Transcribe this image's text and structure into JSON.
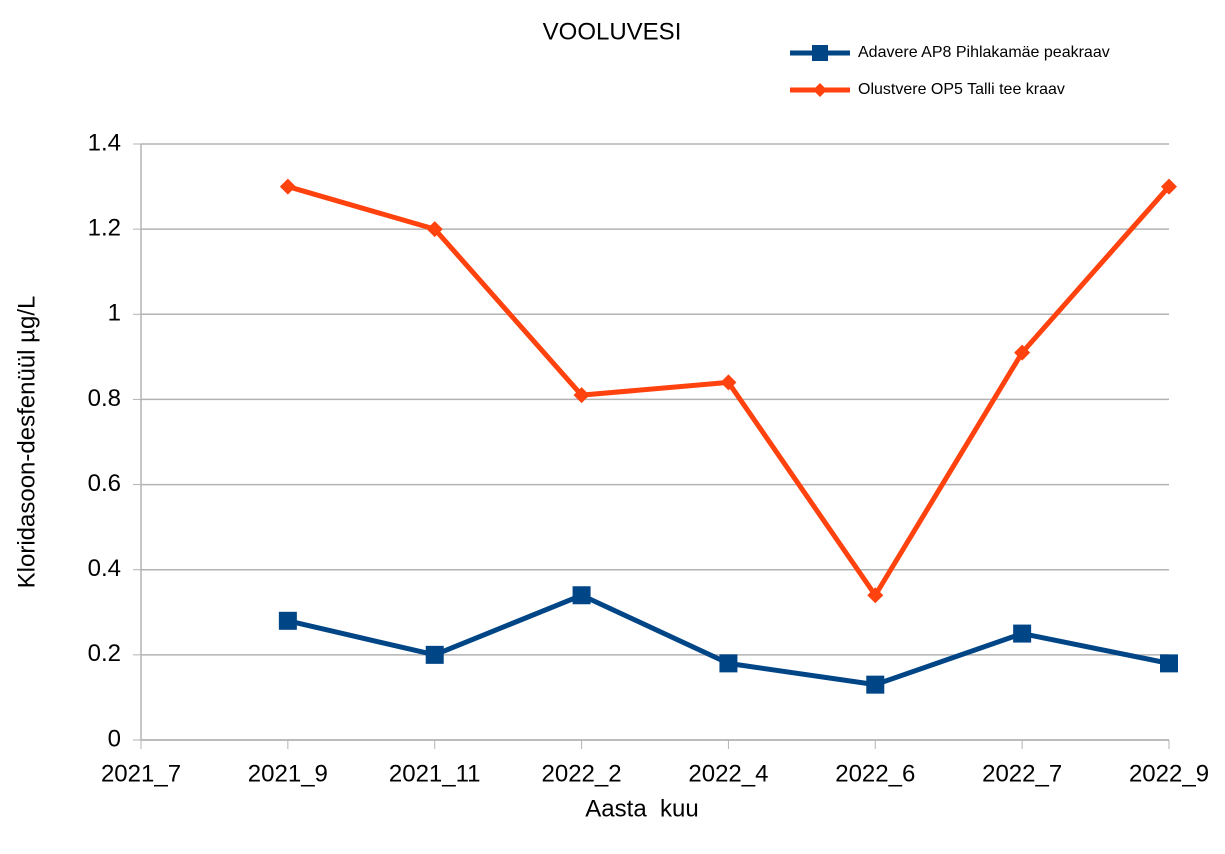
{
  "chart_data": {
    "type": "line",
    "title": "VOOLUVESI",
    "x_label": "Aasta  kuu",
    "y_label": "Kloridasoon-desfenüül µg/L",
    "categories": [
      "2021_7",
      "2021_9",
      "2021_11",
      "2022_2",
      "2022_4",
      "2022_6",
      "2022_7",
      "2022_9"
    ],
    "series": [
      {
        "name": "Adavere AP8 Pihlakamäe peakraav",
        "color": "#004586",
        "marker": "square",
        "values": [
          null,
          0.28,
          0.2,
          0.34,
          0.18,
          0.13,
          0.25,
          0.18
        ]
      },
      {
        "name": "Olustvere OP5 Talli tee kraav",
        "color": "#ff420e",
        "marker": "diamond",
        "values": [
          null,
          1.3,
          1.2,
          0.81,
          0.84,
          0.34,
          0.91,
          1.3
        ]
      }
    ],
    "ylim": [
      0,
      1.4
    ],
    "yticks": [
      0,
      0.2,
      0.4,
      0.6,
      0.8,
      1,
      1.2,
      1.4
    ],
    "grid": true,
    "legend": "top-right"
  }
}
